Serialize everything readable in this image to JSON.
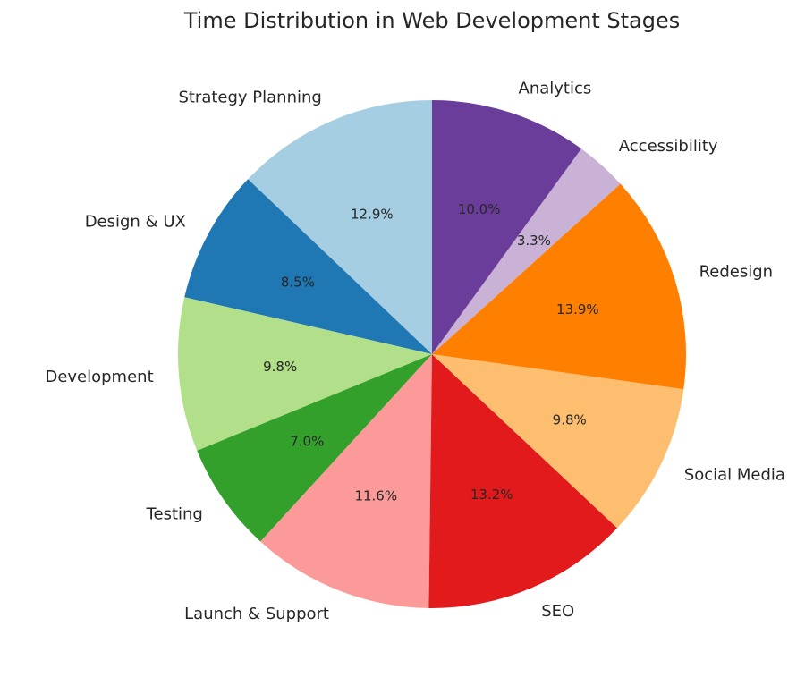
{
  "chart_data": {
    "type": "pie",
    "title": "Time Distribution in Web Development Stages",
    "start_angle_deg": 90,
    "direction": "counterclockwise",
    "slices": [
      {
        "label": "Strategy Planning",
        "value": 12.9,
        "pct_text": "12.9%",
        "color": "#a6cee3"
      },
      {
        "label": "Design & UX",
        "value": 8.5,
        "pct_text": "8.5%",
        "color": "#1f78b4"
      },
      {
        "label": "Development",
        "value": 9.8,
        "pct_text": "9.8%",
        "color": "#b2df8a"
      },
      {
        "label": "Testing",
        "value": 7.0,
        "pct_text": "7.0%",
        "color": "#33a02c"
      },
      {
        "label": "Launch & Support",
        "value": 11.6,
        "pct_text": "11.6%",
        "color": "#fb9a99"
      },
      {
        "label": "SEO",
        "value": 13.2,
        "pct_text": "13.2%",
        "color": "#e31a1c"
      },
      {
        "label": "Social Media",
        "value": 9.8,
        "pct_text": "9.8%",
        "color": "#fdbf6f"
      },
      {
        "label": "Redesign",
        "value": 13.9,
        "pct_text": "13.9%",
        "color": "#ff7f00"
      },
      {
        "label": "Accessibility",
        "value": 3.3,
        "pct_text": "3.3%",
        "color": "#cab2d6"
      },
      {
        "label": "Analytics",
        "value": 10.0,
        "pct_text": "10.0%",
        "color": "#6a3d9a"
      }
    ]
  }
}
